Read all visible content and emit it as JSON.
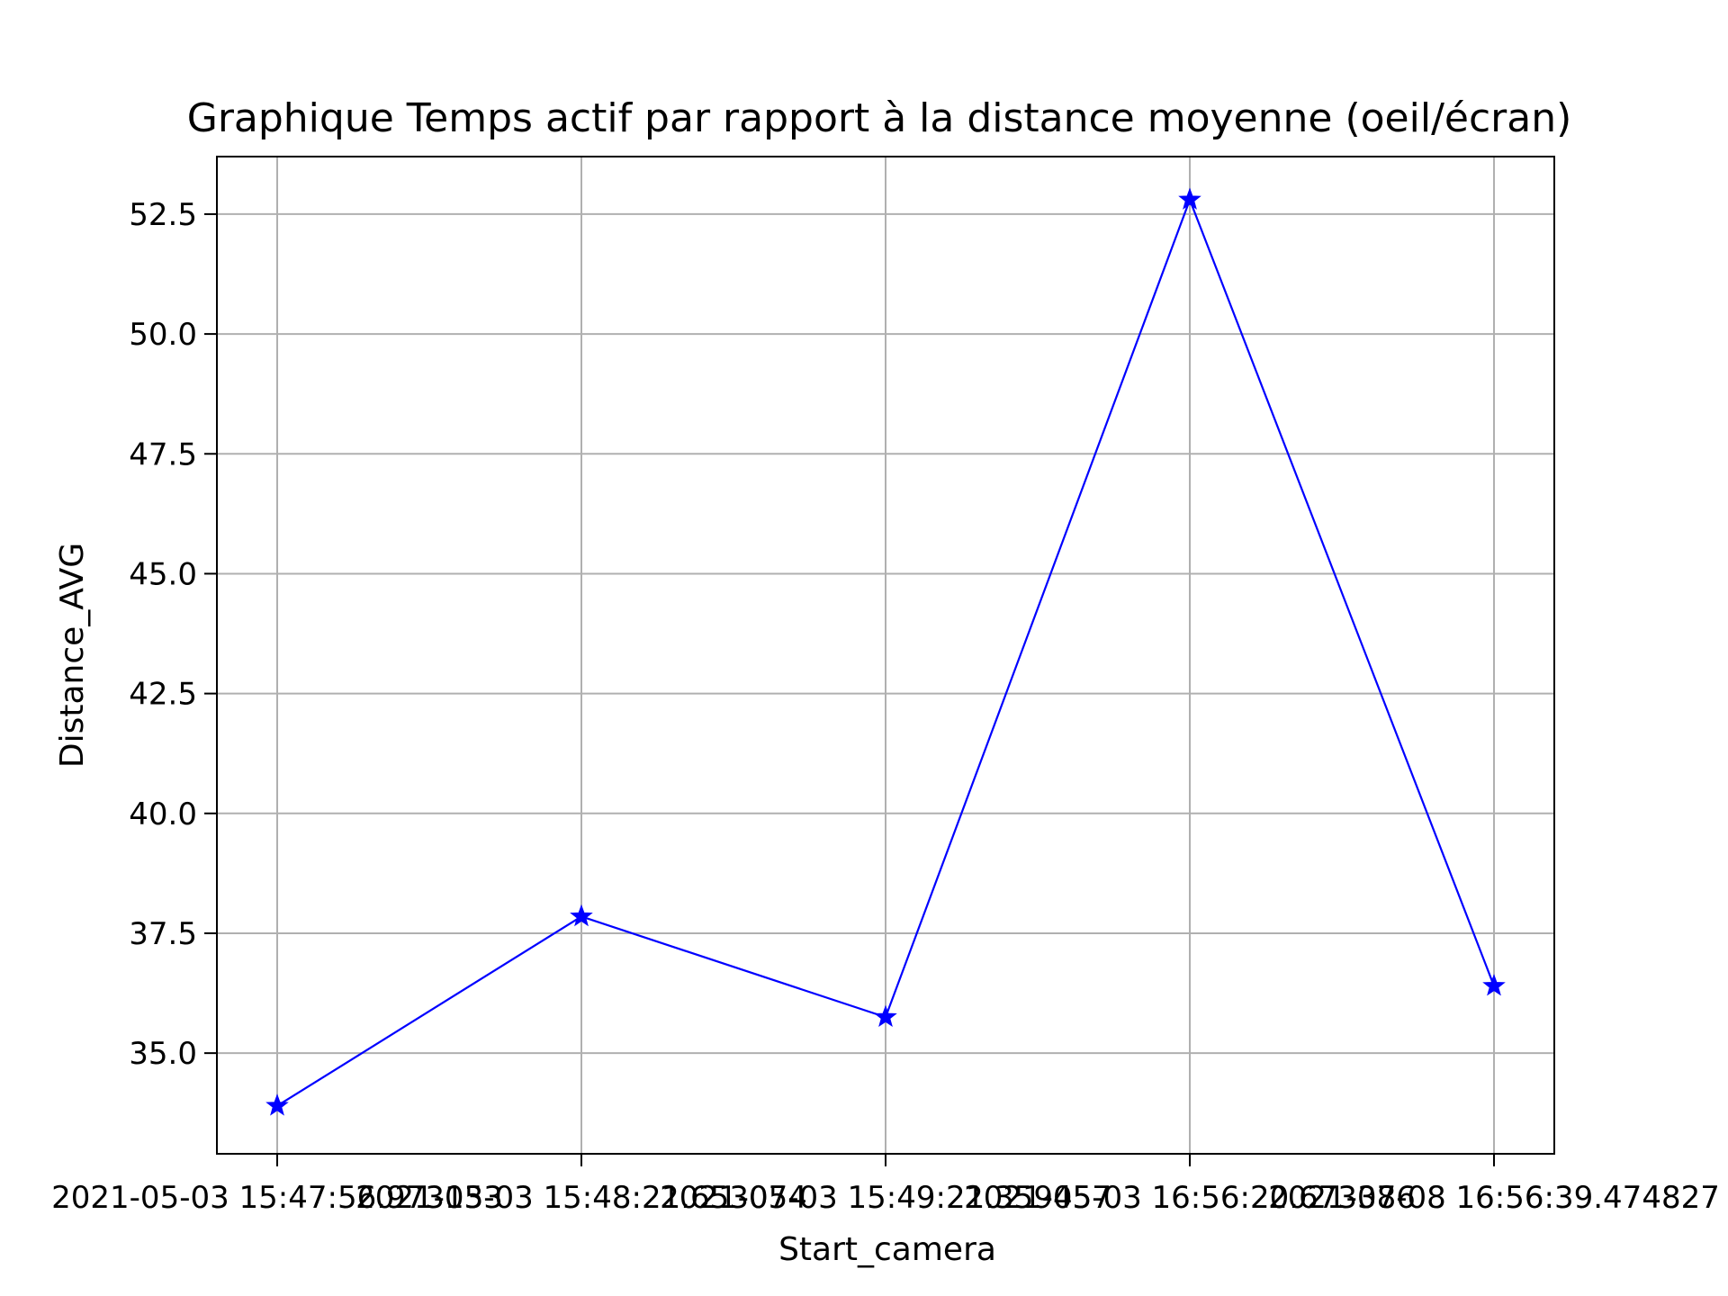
{
  "chart_data": {
    "type": "line",
    "title": "Graphique Temps actif par rapport à la distance moyenne (oeil/écran)",
    "xlabel": "Start_camera",
    "ylabel": "Distance_AVG",
    "categories": [
      "2021-05-03 15:47:56.973133",
      "2021-05-03 15:48:21.653074",
      "2021-05-03 15:49:21.359457",
      "2021-05-03 16:56:20.673386",
      "2021-07-08 16:56:39.474827"
    ],
    "series": [
      {
        "values": [
          33.9,
          37.85,
          35.75,
          52.8,
          36.4
        ],
        "color": "#0000ff",
        "marker": "star"
      }
    ],
    "ylim": [
      32.9,
      53.7
    ],
    "yticks": [
      35.0,
      37.5,
      40.0,
      42.5,
      45.0,
      47.5,
      50.0,
      52.5
    ],
    "grid": true,
    "legend": false
  }
}
